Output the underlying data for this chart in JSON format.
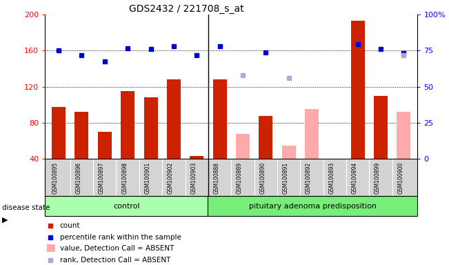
{
  "title": "GDS2432 / 221708_s_at",
  "samples": [
    "GSM100895",
    "GSM100896",
    "GSM100897",
    "GSM100898",
    "GSM100901",
    "GSM100902",
    "GSM100903",
    "GSM100888",
    "GSM100889",
    "GSM100890",
    "GSM100891",
    "GSM100892",
    "GSM100893",
    "GSM100894",
    "GSM100899",
    "GSM100900"
  ],
  "count_per_sample": [
    98,
    92,
    70,
    115,
    108,
    128,
    43,
    128,
    null,
    88,
    null,
    null,
    null,
    193,
    110,
    null
  ],
  "absent_per_sample": [
    null,
    null,
    null,
    null,
    null,
    null,
    null,
    null,
    68,
    null,
    55,
    95,
    null,
    null,
    null,
    92
  ],
  "rank_present": [
    160,
    155,
    148,
    163,
    162,
    165,
    155,
    165,
    null,
    158,
    null,
    null,
    null,
    167,
    162,
    157
  ],
  "rank_absent": [
    null,
    null,
    null,
    null,
    null,
    null,
    null,
    null,
    133,
    null,
    130,
    null,
    null,
    null,
    null,
    155
  ],
  "n_control": 7,
  "ylim_left": [
    40,
    200
  ],
  "ylim_right": [
    0,
    100
  ],
  "yticks_left": [
    40,
    80,
    120,
    160,
    200
  ],
  "yticks_right": [
    0,
    25,
    50,
    75,
    100
  ],
  "ytick_labels_right": [
    "0",
    "25",
    "50",
    "75",
    "100%"
  ],
  "bar_color_present": "#cc2200",
  "bar_color_absent": "#ffaaaa",
  "rank_color_present": "#0000cc",
  "rank_color_absent": "#aaaacc",
  "group_color_control": "#aaffaa",
  "group_color_pituitary": "#77ee77"
}
